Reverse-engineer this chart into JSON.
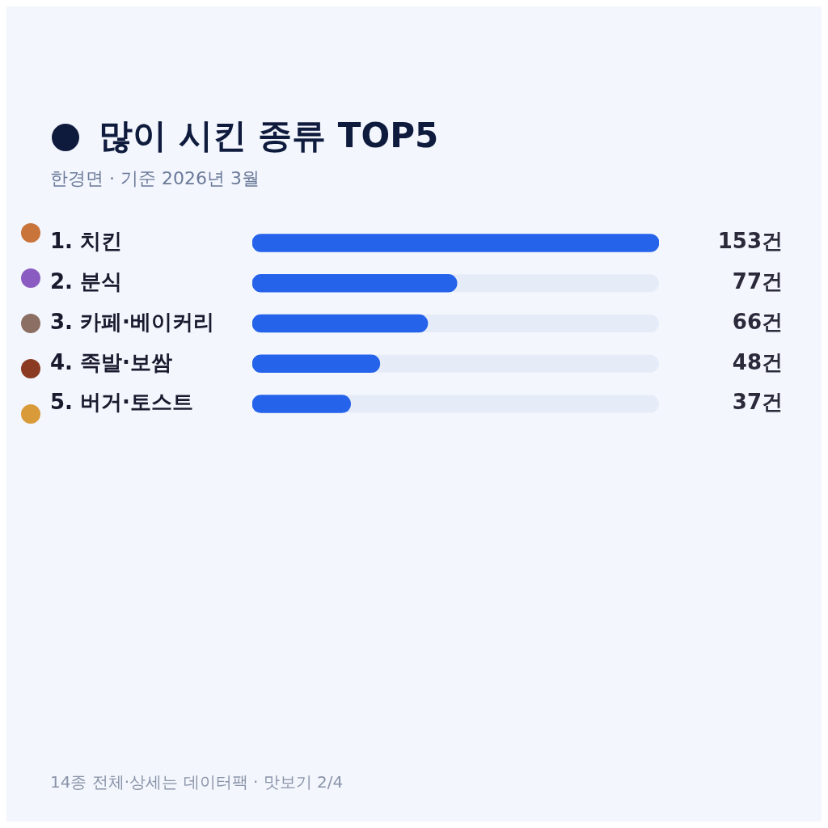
{
  "chart_data": {
    "type": "bar",
    "orientation": "horizontal",
    "title": "많이 시킨 종류 TOP5",
    "subtitle": "한경면 · 기준 2026년 3월",
    "categories": [
      "1. 치킨",
      "2. 분식",
      "3. 카페·베이커리",
      "4. 족발·보쌈",
      "5. 버거·토스트"
    ],
    "values": [
      153,
      77,
      66,
      48,
      37
    ],
    "value_labels": [
      "153건",
      "77건",
      "66건",
      "48건",
      "37건"
    ],
    "color": "#2563eb",
    "xlim": [
      0,
      153
    ],
    "tick_labels": "y",
    "annotations": [
      "14종 전체·상세는 데이터팩 · 맛보기 2/4"
    ]
  }
}
